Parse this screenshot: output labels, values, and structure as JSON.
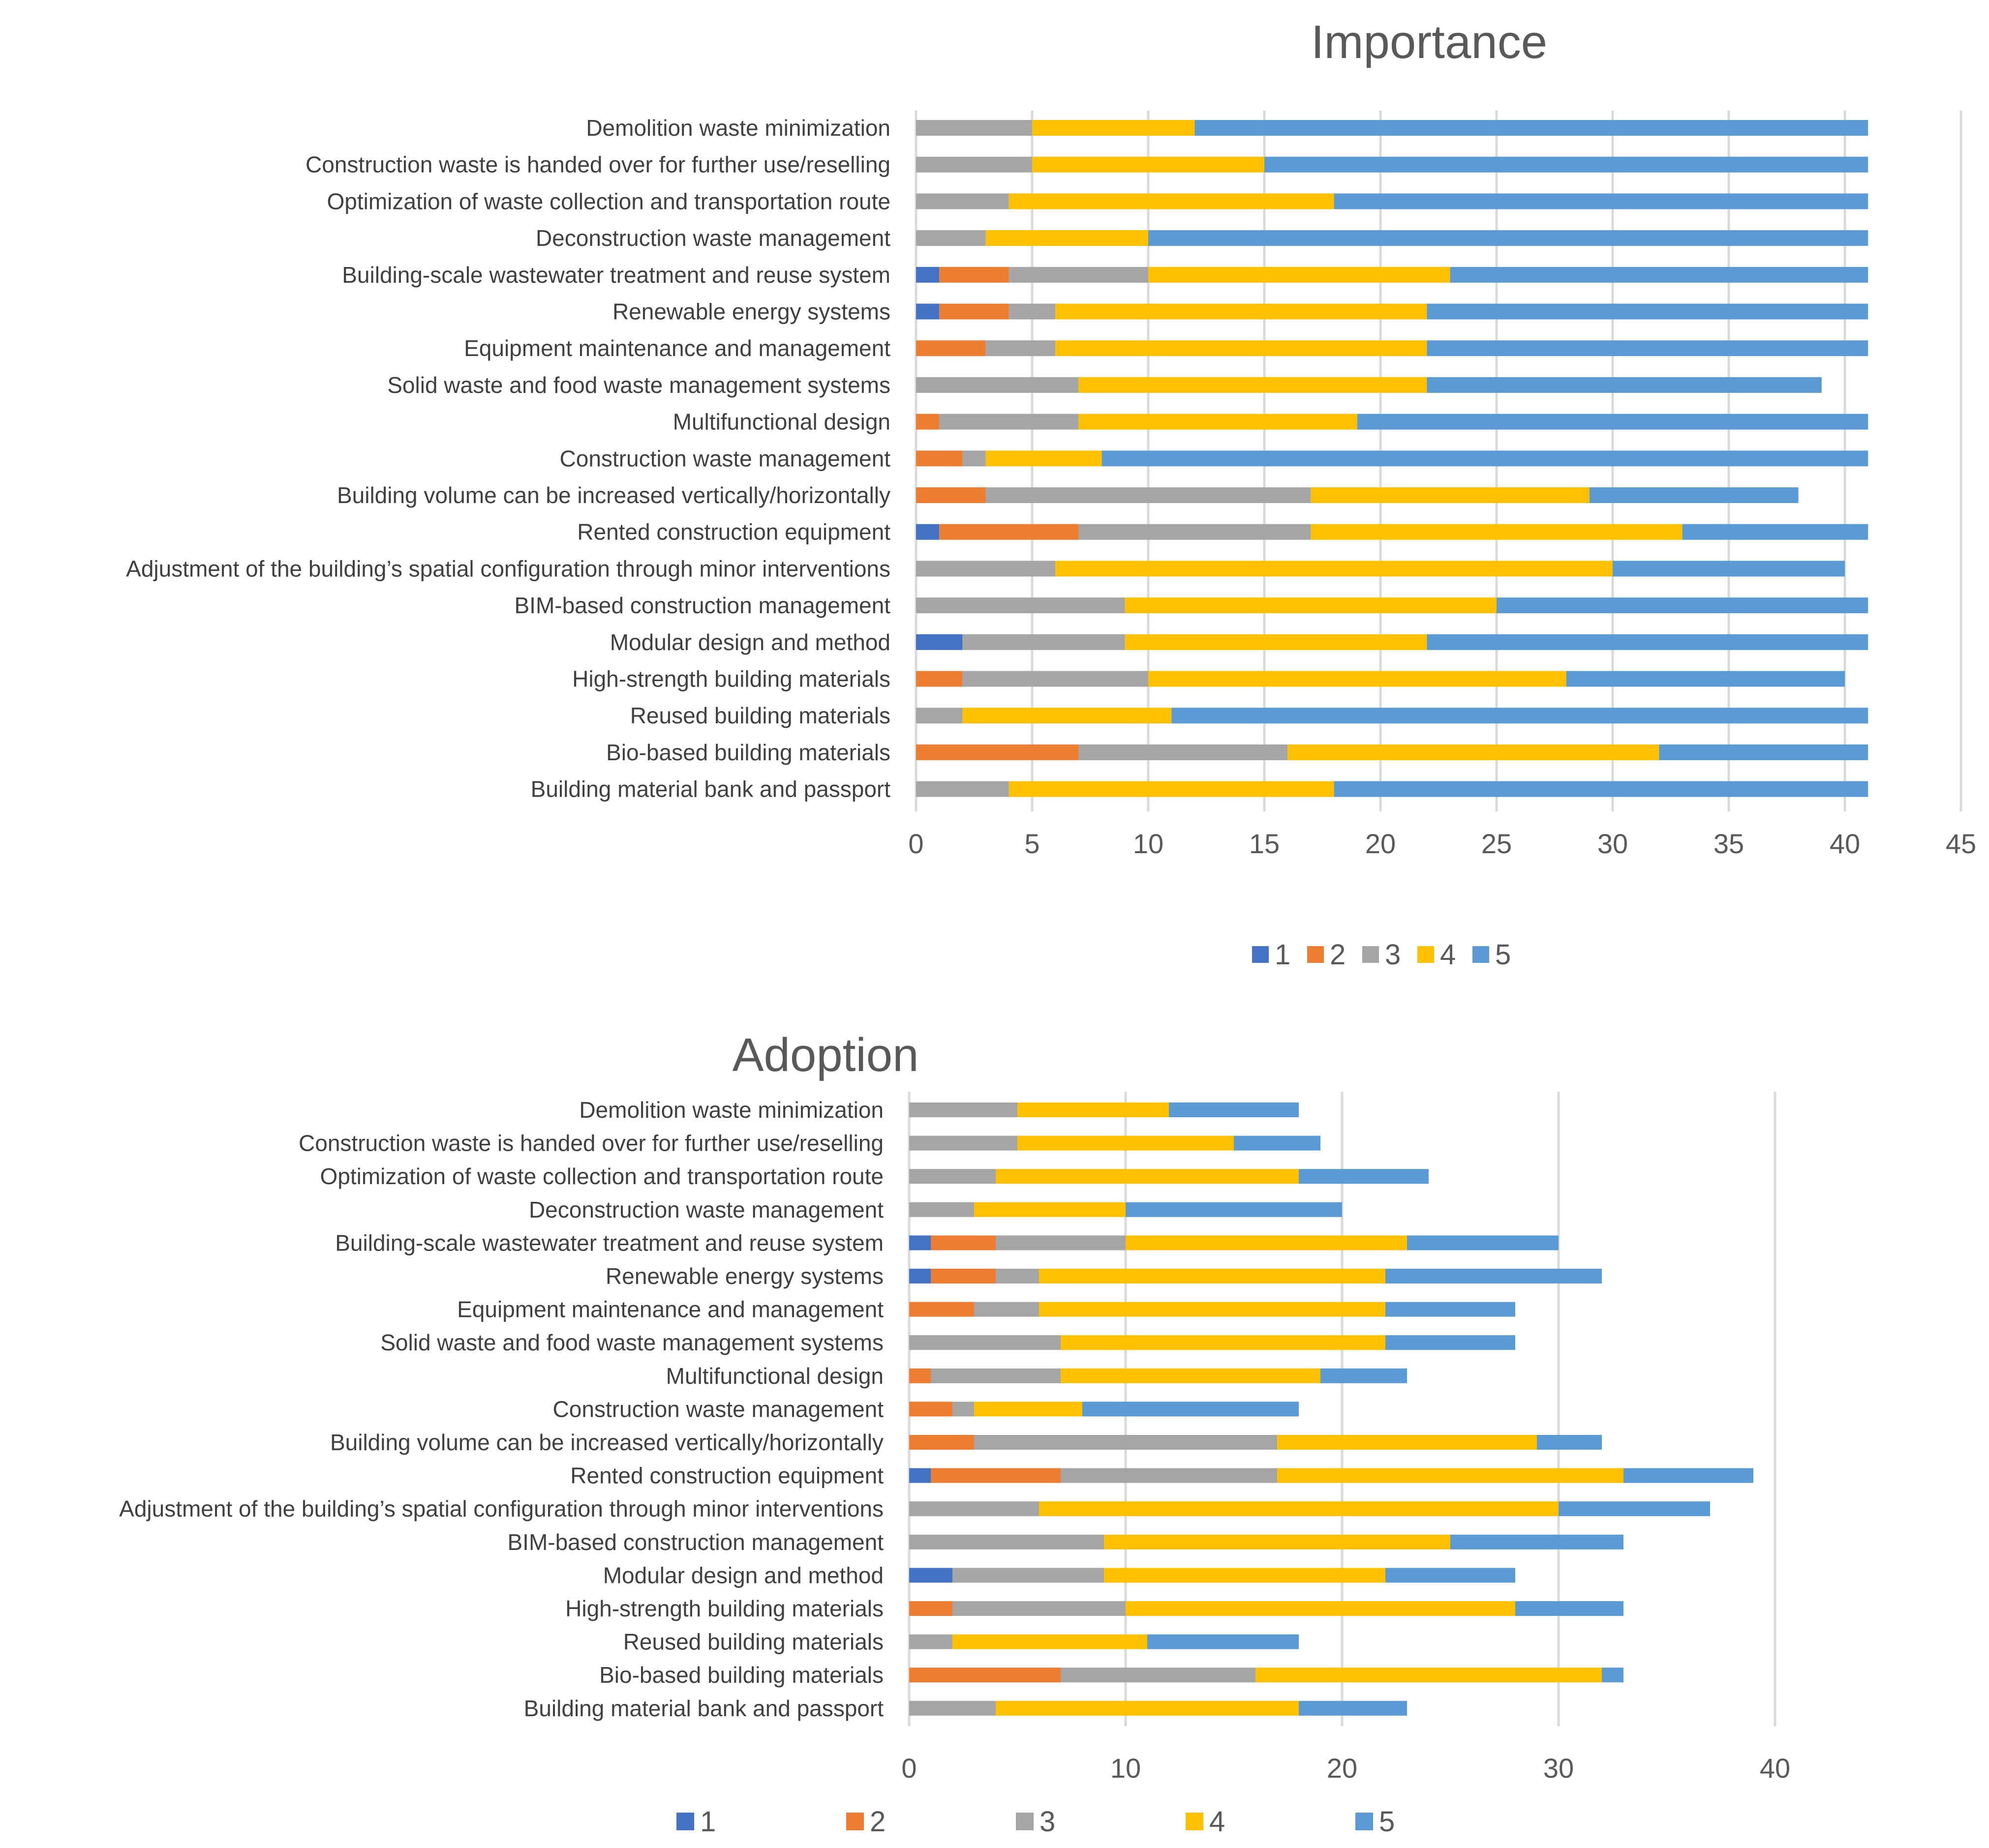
{
  "chart_data": [
    {
      "type": "bar",
      "orientation": "horizontal",
      "stacked": true,
      "title": "Importance",
      "categories": [
        "Demolition waste minimization",
        "Construction waste is handed over for further use/reselling",
        "Optimization of waste collection and transportation route",
        "Deconstruction waste management",
        "Building-scale wastewater treatment and reuse system",
        "Renewable energy systems",
        "Equipment maintenance and management",
        "Solid waste and food waste management systems",
        "Multifunctional design",
        "Construction waste management",
        "Building volume can be increased vertically/horizontally",
        "Rented construction equipment",
        "Adjustment of  the building’s spatial configuration through minor interventions",
        "BIM-based construction management",
        "Modular design and method",
        "High-strength building materials",
        "Reused building materials",
        "Bio-based building materials",
        "Building material bank and passport"
      ],
      "series": [
        {
          "name": "1",
          "values": [
            0,
            0,
            0,
            0,
            1,
            1,
            0,
            0,
            0,
            0,
            0,
            1,
            0,
            0,
            2,
            0,
            0,
            0,
            0
          ]
        },
        {
          "name": "2",
          "values": [
            0,
            0,
            0,
            0,
            3,
            3,
            3,
            0,
            1,
            2,
            3,
            6,
            0,
            0,
            0,
            2,
            0,
            7,
            0
          ]
        },
        {
          "name": "3",
          "values": [
            5,
            5,
            4,
            3,
            6,
            2,
            3,
            7,
            6,
            1,
            14,
            10,
            6,
            9,
            7,
            8,
            2,
            9,
            4
          ]
        },
        {
          "name": "4",
          "values": [
            7,
            10,
            14,
            7,
            13,
            16,
            16,
            15,
            12,
            5,
            12,
            16,
            24,
            16,
            13,
            18,
            9,
            16,
            14
          ]
        },
        {
          "name": "5",
          "values": [
            29,
            26,
            23,
            31,
            18,
            19,
            19,
            17,
            22,
            33,
            9,
            8,
            10,
            16,
            19,
            12,
            30,
            9,
            23
          ]
        }
      ],
      "xlim": [
        0,
        45
      ],
      "xticks": [
        "0",
        "5",
        "10",
        "15",
        "20",
        "25",
        "30",
        "35",
        "40",
        "45"
      ],
      "grid": true,
      "legend_position": "bottom"
    },
    {
      "type": "bar",
      "orientation": "horizontal",
      "stacked": true,
      "title": "Adoption",
      "categories": [
        "Demolition waste minimization",
        "Construction waste is handed over for further use/reselling",
        "Optimization of waste collection and transportation route",
        "Deconstruction waste management",
        "Building-scale wastewater treatment and reuse system",
        "Renewable energy systems",
        "Equipment maintenance and management",
        "Solid waste and food waste management systems",
        "Multifunctional design",
        "Construction waste management",
        "Building volume can be increased vertically/horizontally",
        "Rented construction equipment",
        "Adjustment of  the building’s spatial configuration through minor interventions",
        "BIM-based construction management",
        "Modular design and method",
        "High-strength building materials",
        "Reused building materials",
        "Bio-based building materials",
        "Building material bank and passport"
      ],
      "series": [
        {
          "name": "1",
          "values": [
            0,
            0,
            0,
            0,
            1,
            1,
            0,
            0,
            0,
            0,
            0,
            1,
            0,
            0,
            2,
            0,
            0,
            0,
            0
          ]
        },
        {
          "name": "2",
          "values": [
            0,
            0,
            0,
            0,
            3,
            3,
            3,
            0,
            1,
            2,
            3,
            6,
            0,
            0,
            0,
            2,
            0,
            7,
            0
          ]
        },
        {
          "name": "3",
          "values": [
            5,
            5,
            4,
            3,
            6,
            2,
            3,
            7,
            6,
            1,
            14,
            10,
            6,
            9,
            7,
            8,
            2,
            9,
            4
          ]
        },
        {
          "name": "4",
          "values": [
            7,
            10,
            14,
            7,
            13,
            16,
            16,
            15,
            12,
            5,
            12,
            16,
            24,
            16,
            13,
            18,
            9,
            16,
            14
          ]
        },
        {
          "name": "5",
          "values": [
            6,
            4,
            6,
            10,
            7,
            10,
            6,
            6,
            4,
            10,
            3,
            6,
            7,
            8,
            6,
            5,
            7,
            1,
            5
          ]
        }
      ],
      "xlim": [
        0,
        45
      ],
      "xticks": [
        "0",
        "10",
        "20",
        "30",
        "40"
      ],
      "xtick_values": [
        0,
        10,
        20,
        30,
        40
      ],
      "grid": true,
      "legend_position": "bottom"
    }
  ],
  "colors": {
    "1": "#4472C4",
    "2": "#ED7D31",
    "3": "#A5A5A5",
    "4": "#FFC000",
    "5": "#5B9BD5"
  }
}
